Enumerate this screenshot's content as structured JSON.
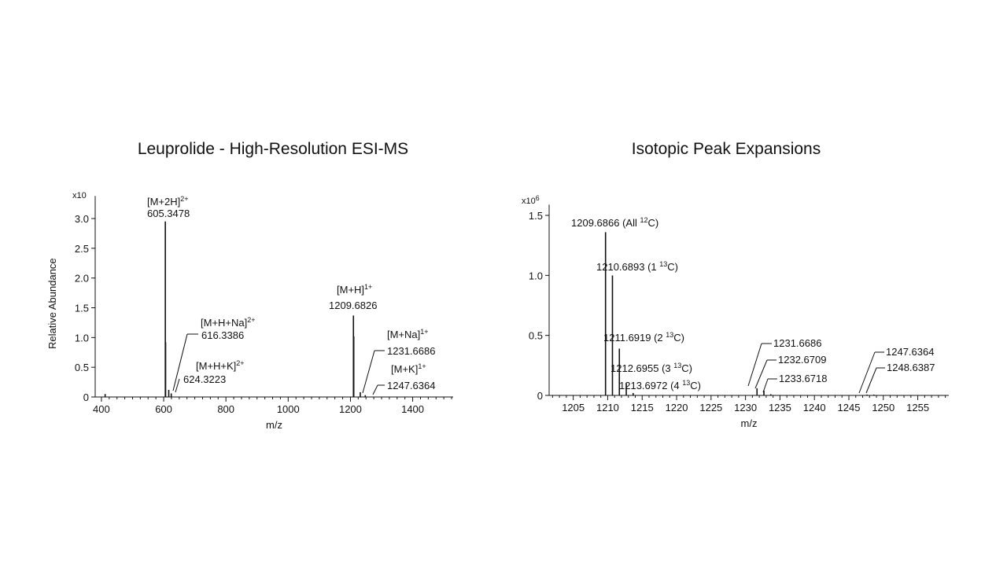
{
  "chart_data": [
    {
      "type": "bar",
      "title": "Leuprolide - High-Resolution ESI-MS",
      "xlabel": "m/z",
      "ylabel": "Relative Abundance",
      "y_multiplier": "x10",
      "xlim": [
        380,
        1530
      ],
      "ylim": [
        0,
        3.3
      ],
      "x_ticks": [
        400,
        600,
        800,
        1000,
        1200,
        1400
      ],
      "x_tick_labels": [
        "400",
        "600",
        "800",
        "1000",
        "1200",
        "1400"
      ],
      "y_ticks": [
        0,
        0.5,
        1.0,
        1.5,
        2.0,
        2.5,
        3.0
      ],
      "y_tick_labels": [
        "0",
        "0.5",
        "1.0",
        "1.5",
        "2.0",
        "2.5",
        "3.0"
      ],
      "peaks": [
        {
          "x": 412,
          "y": 0.05
        },
        {
          "x": 605.3478,
          "y": 2.95
        },
        {
          "x": 606.2,
          "y": 0.92
        },
        {
          "x": 616.3386,
          "y": 0.12
        },
        {
          "x": 624.3223,
          "y": 0.06
        },
        {
          "x": 1209.6826,
          "y": 1.37
        },
        {
          "x": 1210.7,
          "y": 1.02
        },
        {
          "x": 1231.6686,
          "y": 0.08
        },
        {
          "x": 1247.6364,
          "y": 0.03
        }
      ],
      "annotations": [
        {
          "label": "[M+2H]",
          "charge": "2+",
          "value": "605.3478"
        },
        {
          "label": "[M+H+Na]",
          "charge": "2+",
          "value": "616.3386"
        },
        {
          "label": "[M+H+K]",
          "charge": "2+",
          "value": "624.3223"
        },
        {
          "label": "[M+H]",
          "charge": "1+",
          "value": "1209.6826"
        },
        {
          "label": "[M+Na]",
          "charge": "1+",
          "value": "1231.6686"
        },
        {
          "label": "[M+K]",
          "charge": "1+",
          "value": "1247.6364"
        }
      ]
    },
    {
      "type": "bar",
      "title": "Isotopic Peak Expansions",
      "xlabel": "m/z",
      "ylabel": "",
      "y_multiplier_base": "x10",
      "y_multiplier_exp": "6",
      "xlim": [
        1201.5,
        1259.5
      ],
      "ylim": [
        0,
        1.55
      ],
      "x_ticks": [
        1205,
        1210,
        1215,
        1220,
        1225,
        1230,
        1235,
        1240,
        1245,
        1250,
        1255
      ],
      "x_tick_labels": [
        "1205",
        "1210",
        "1215",
        "1220",
        "1225",
        "1230",
        "1235",
        "1240",
        "1245",
        "1250",
        "1255"
      ],
      "y_ticks": [
        0,
        0.5,
        1.0,
        1.5
      ],
      "y_tick_labels": [
        "0",
        "0.5",
        "1.0",
        "1.5"
      ],
      "peaks": [
        {
          "x": 1209.6866,
          "y": 1.36
        },
        {
          "x": 1210.6893,
          "y": 1.0
        },
        {
          "x": 1211.6919,
          "y": 0.39
        },
        {
          "x": 1212.6955,
          "y": 0.1
        },
        {
          "x": 1213.6972,
          "y": 0.02
        },
        {
          "x": 1231.6686,
          "y": 0.06
        },
        {
          "x": 1232.6709,
          "y": 0.04
        },
        {
          "x": 1233.6718,
          "y": 0.01
        },
        {
          "x": 1247.6364,
          "y": 0.005
        },
        {
          "x": 1248.6387,
          "y": 0.003
        }
      ],
      "annotations": [
        {
          "value": "1209.6866",
          "pre": "(All ",
          "iso": "12",
          "post": "C)"
        },
        {
          "value": "1210.6893",
          "pre": "(1 ",
          "iso": "13",
          "post": "C)"
        },
        {
          "value": "1211.6919",
          "pre": "(2 ",
          "iso": "13",
          "post": "C)"
        },
        {
          "value": "1212.6955",
          "pre": "(3 ",
          "iso": "13",
          "post": "C)"
        },
        {
          "value": "1213.6972",
          "pre": "(4 ",
          "iso": "13",
          "post": "C)"
        },
        {
          "value": "1231.6686"
        },
        {
          "value": "1232.6709"
        },
        {
          "value": "1233.6718"
        },
        {
          "value": "1247.6364"
        },
        {
          "value": "1248.6387"
        }
      ]
    }
  ]
}
